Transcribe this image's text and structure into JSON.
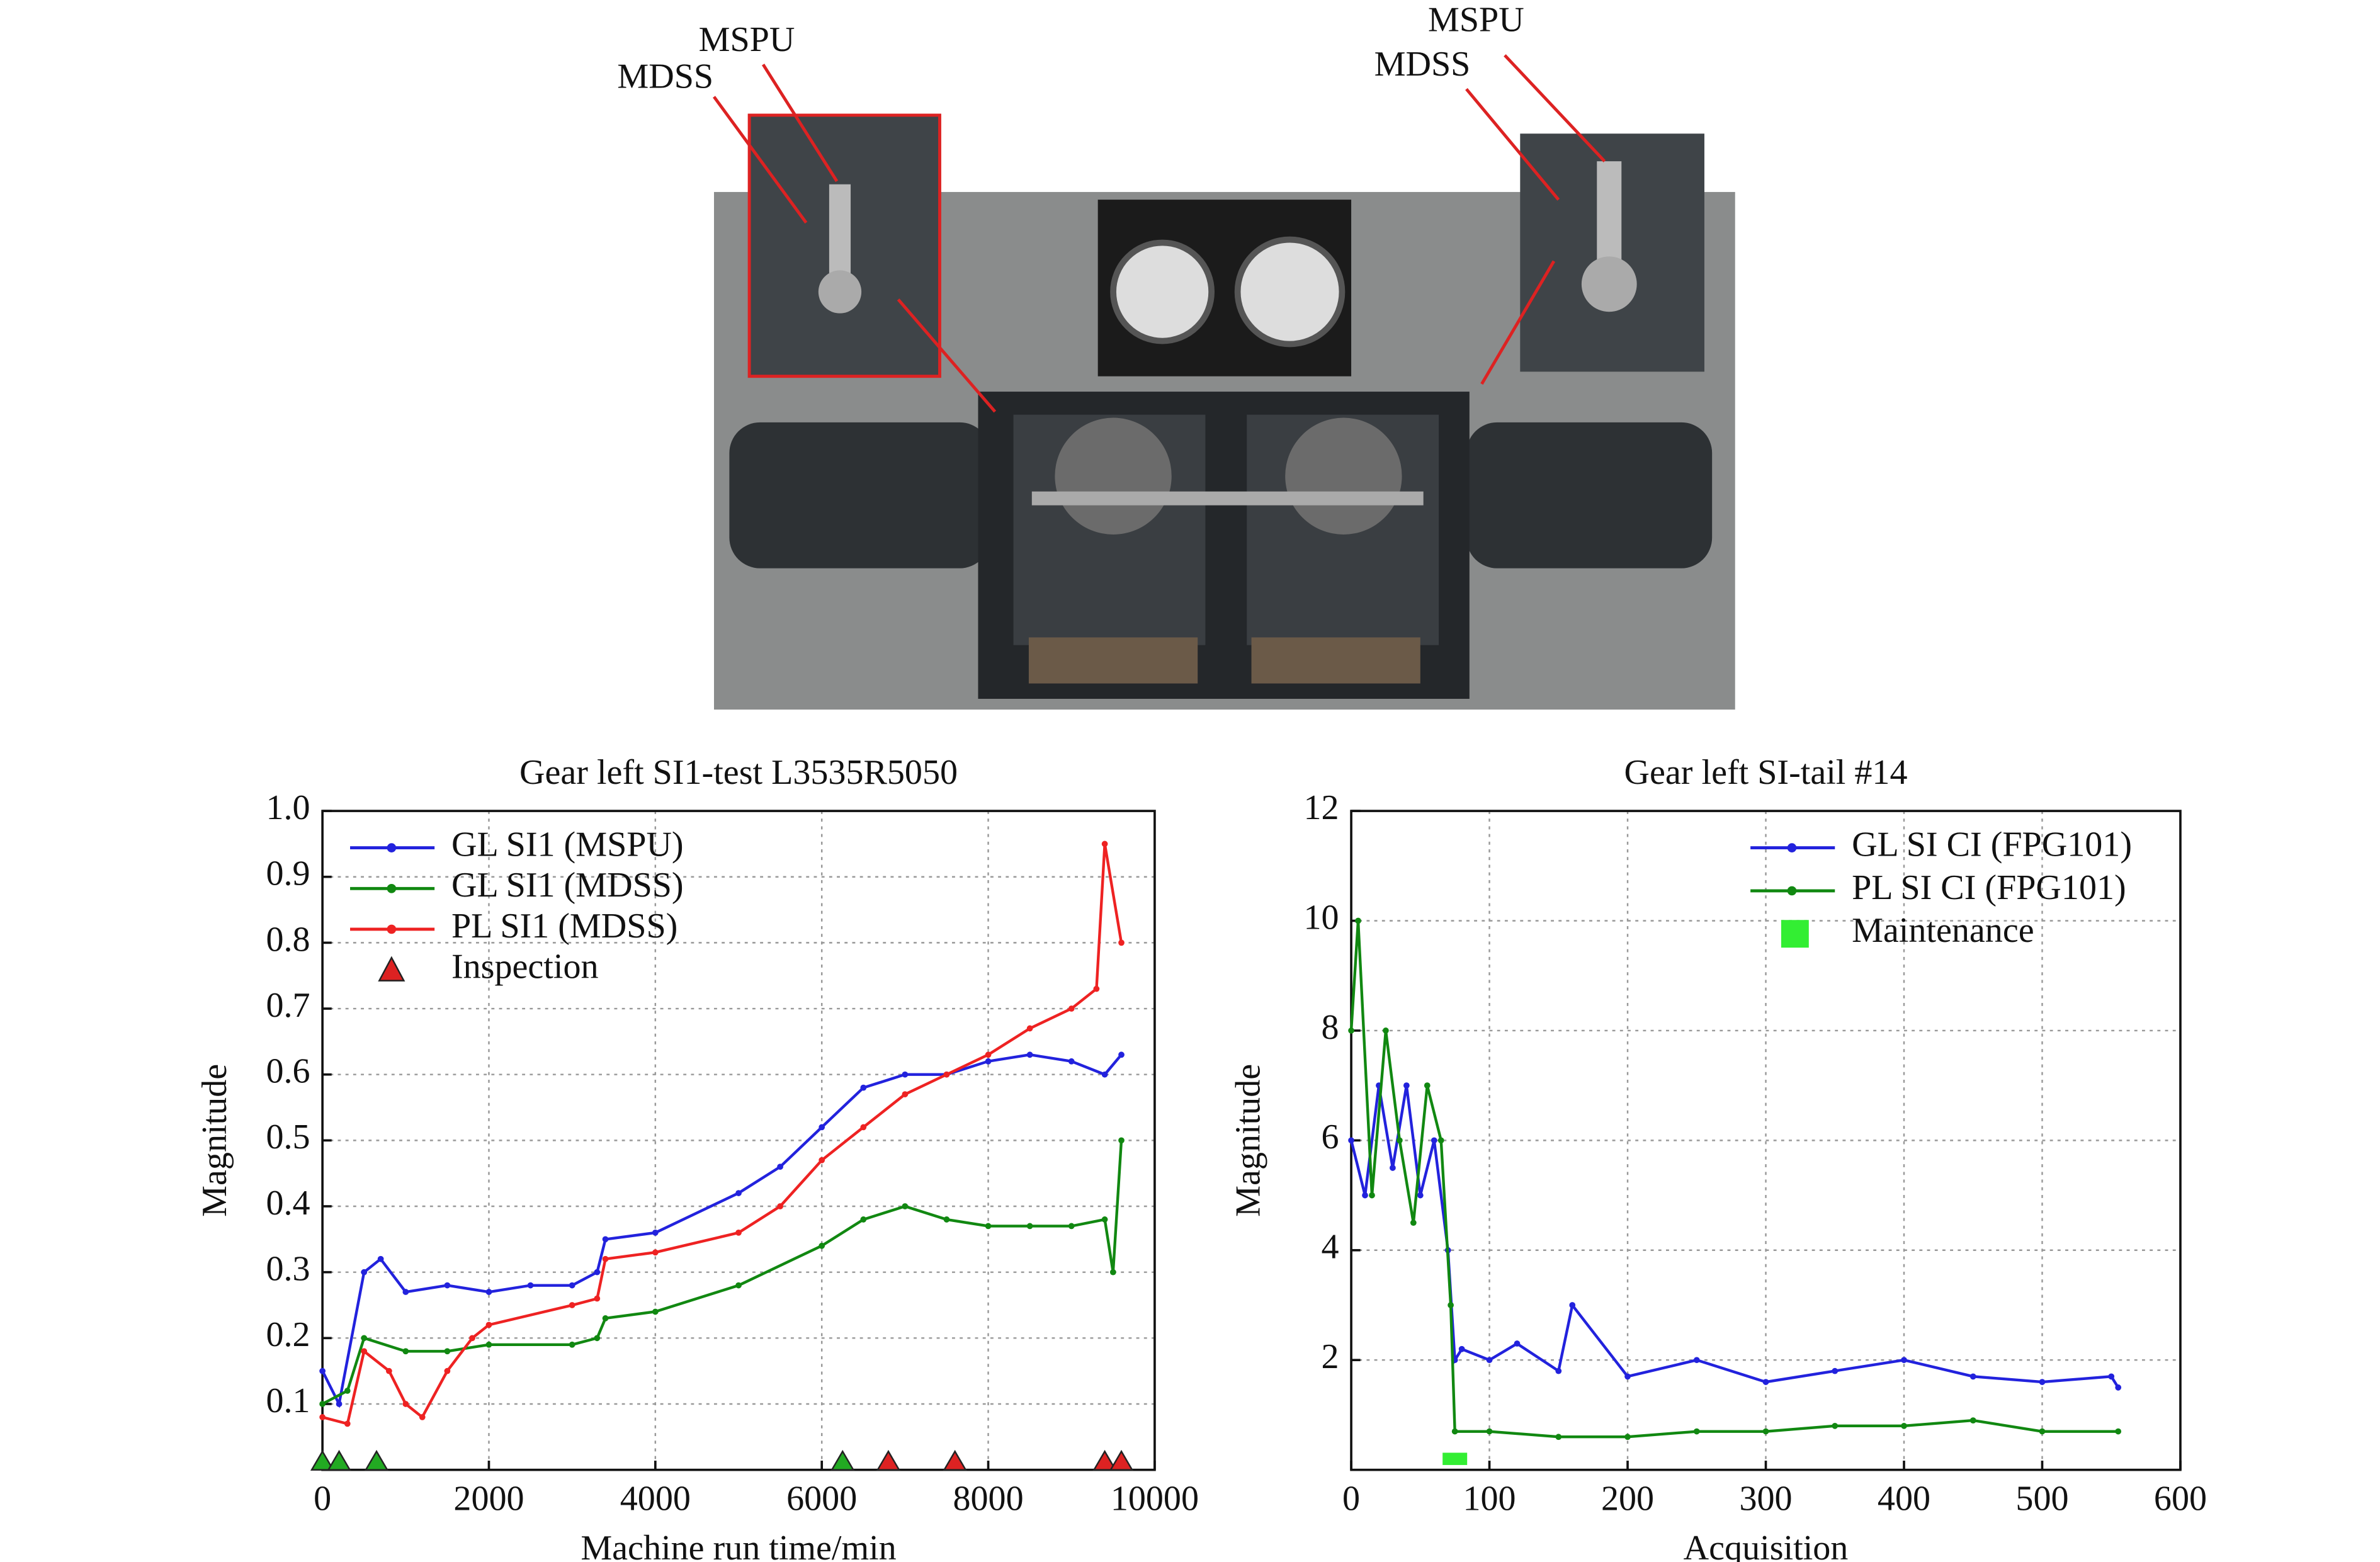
{
  "photo": {
    "labels": [
      "MSPU",
      "MDSS",
      "MSPU",
      "MDSS"
    ]
  },
  "chart_data": [
    {
      "type": "line",
      "title": "Gear left SI1-test L3535R5050",
      "xlabel": "Machine run time/min",
      "ylabel": "Magnitude",
      "xlim": [
        0,
        10000
      ],
      "xticks": [
        0,
        2000,
        4000,
        6000,
        8000,
        10000
      ],
      "ylim": [
        0,
        1
      ],
      "yticks": [
        0.1,
        0.2,
        0.3,
        0.4,
        0.5,
        0.6,
        0.7,
        0.8,
        0.9,
        {
          "value": 1,
          "label": "1.0"
        }
      ],
      "grid": true,
      "legend": "upper left",
      "series": [
        {
          "name": "GL SI1 (MSPU)",
          "color": "#2222dd",
          "x": [
            0,
            200,
            500,
            700,
            1000,
            1500,
            2000,
            2500,
            3000,
            3300,
            3400,
            4000,
            5000,
            5500,
            6000,
            6500,
            7000,
            7500,
            8000,
            8500,
            9000,
            9400,
            9600
          ],
          "values": [
            0.15,
            0.1,
            0.3,
            0.32,
            0.27,
            0.28,
            0.27,
            0.28,
            0.28,
            0.3,
            0.35,
            0.36,
            0.42,
            0.46,
            0.52,
            0.58,
            0.6,
            0.6,
            0.62,
            0.63,
            0.62,
            0.6,
            0.63
          ]
        },
        {
          "name": "GL SI1 (MDSS)",
          "color": "#118811",
          "x": [
            0,
            300,
            500,
            1000,
            1500,
            2000,
            3000,
            3300,
            3400,
            4000,
            5000,
            6000,
            6500,
            7000,
            7500,
            8000,
            8500,
            9000,
            9400,
            9500,
            9600
          ],
          "values": [
            0.1,
            0.12,
            0.2,
            0.18,
            0.18,
            0.19,
            0.19,
            0.2,
            0.23,
            0.24,
            0.28,
            0.34,
            0.38,
            0.4,
            0.38,
            0.37,
            0.37,
            0.37,
            0.38,
            0.3,
            0.5
          ]
        },
        {
          "name": "PL SI1 (MDSS)",
          "color": "#ee2222",
          "x": [
            0,
            300,
            500,
            800,
            1000,
            1200,
            1500,
            1800,
            2000,
            3000,
            3300,
            3400,
            4000,
            5000,
            5500,
            6000,
            6500,
            7000,
            7500,
            8000,
            8500,
            9000,
            9300,
            9400,
            9600
          ],
          "values": [
            0.08,
            0.07,
            0.18,
            0.15,
            0.1,
            0.08,
            0.15,
            0.2,
            0.22,
            0.25,
            0.26,
            0.32,
            0.33,
            0.36,
            0.4,
            0.47,
            0.52,
            0.57,
            0.6,
            0.63,
            0.67,
            0.7,
            0.73,
            0.95,
            0.8
          ]
        }
      ],
      "markers": {
        "name": "Inspection",
        "x": [
          0,
          200,
          650,
          6250,
          6800,
          7600,
          9400,
          9600
        ],
        "y": [
          0,
          0,
          0,
          0,
          0,
          0,
          0,
          0
        ],
        "colors": [
          "#22aa22",
          "#22aa22",
          "#22aa22",
          "#22aa22",
          "#dd2222",
          "#dd2222",
          "#dd2222",
          "#dd2222"
        ]
      }
    },
    {
      "type": "line",
      "title": "Gear left SI-tail #14",
      "xlabel": "Acquisition",
      "ylabel": "Magnitude",
      "xlim": [
        0,
        600
      ],
      "xticks": [
        0,
        100,
        200,
        300,
        400,
        500,
        600
      ],
      "ylim": [
        0,
        12
      ],
      "yticks": [
        2,
        4,
        6,
        8,
        10,
        12
      ],
      "grid": true,
      "legend": "upper right",
      "series": [
        {
          "name": "GL SI CI (FPG101)",
          "color": "#2222dd",
          "x": [
            0,
            10,
            20,
            30,
            40,
            50,
            60,
            70,
            75,
            80,
            100,
            120,
            150,
            160,
            200,
            250,
            300,
            350,
            400,
            450,
            500,
            550,
            555
          ],
          "values": [
            6,
            5,
            7,
            5.5,
            7,
            5,
            6,
            4,
            2,
            2.2,
            2,
            2.3,
            1.8,
            3,
            1.7,
            2,
            1.6,
            1.8,
            2,
            1.7,
            1.6,
            1.7,
            1.5
          ]
        },
        {
          "name": "PL SI CI (FPG101)",
          "color": "#118811",
          "x": [
            0,
            5,
            15,
            25,
            35,
            45,
            55,
            65,
            72,
            75,
            100,
            150,
            200,
            250,
            300,
            350,
            400,
            450,
            500,
            555
          ],
          "values": [
            8,
            10,
            5,
            8,
            6,
            4.5,
            7,
            6,
            3,
            0.7,
            0.7,
            0.6,
            0.6,
            0.7,
            0.7,
            0.8,
            0.8,
            0.9,
            0.7,
            0.7
          ]
        }
      ],
      "markers": {
        "name": "Maintenance",
        "x": [
          75
        ],
        "y": [
          0.2
        ],
        "colors": [
          "#33ee33"
        ]
      }
    }
  ]
}
